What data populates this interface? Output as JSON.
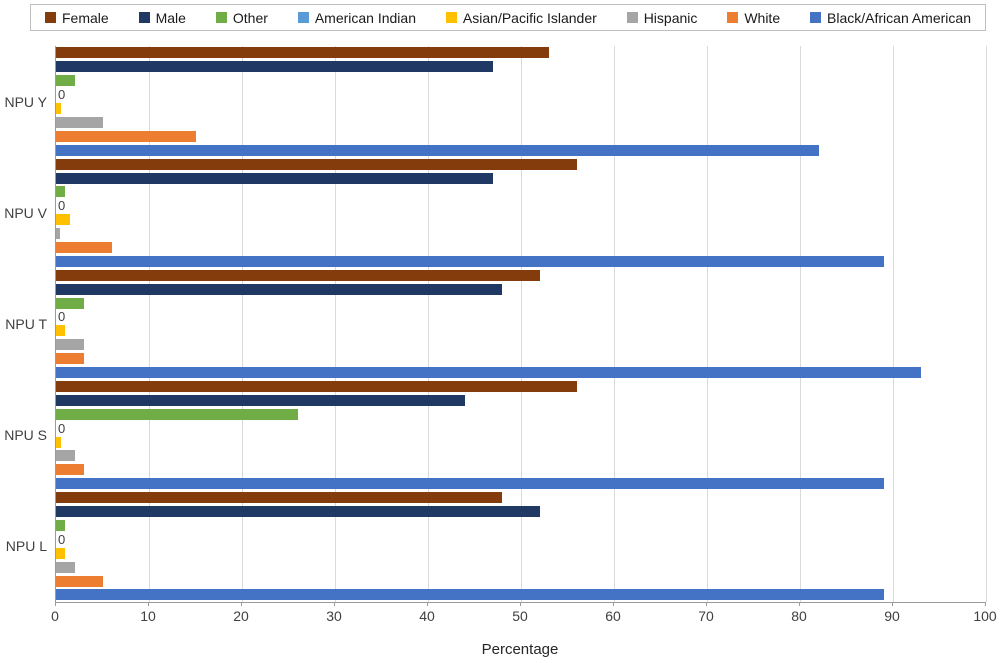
{
  "chart_data": {
    "type": "bar",
    "orientation": "horizontal",
    "title": "",
    "xlabel": "Percentage",
    "ylabel": "",
    "xlim": [
      0,
      100
    ],
    "xticks": [
      0,
      10,
      20,
      30,
      40,
      50,
      60,
      70,
      80,
      90,
      100
    ],
    "grid": true,
    "legend_position": "top",
    "categories": [
      "NPU Y",
      "NPU V",
      "NPU T",
      "NPU S",
      "NPU L"
    ],
    "series": [
      {
        "name": "Female",
        "color": "#843C0C",
        "values": [
          53,
          56,
          52,
          56,
          48
        ]
      },
      {
        "name": "Male",
        "color": "#1F3864",
        "values": [
          47,
          47,
          48,
          44,
          52
        ]
      },
      {
        "name": "Other",
        "color": "#70AD47",
        "values": [
          2,
          1,
          3,
          26,
          1
        ]
      },
      {
        "name": "American Indian",
        "color": "#5B9BD5",
        "values": [
          0,
          0,
          0,
          0,
          0
        ],
        "data_labels": true
      },
      {
        "name": "Asian/Pacific Islander",
        "color": "#FFC000",
        "values": [
          0.5,
          1.5,
          1,
          0.5,
          1
        ]
      },
      {
        "name": "Hispanic",
        "color": "#A5A5A5",
        "values": [
          5,
          0.4,
          3,
          2,
          2
        ]
      },
      {
        "name": "White",
        "color": "#ED7D31",
        "values": [
          15,
          6,
          3,
          3,
          5
        ]
      },
      {
        "name": "Black/African American",
        "color": "#4472C4",
        "values": [
          82,
          89,
          93,
          89,
          89
        ]
      }
    ],
    "zero_label_text": "0"
  }
}
